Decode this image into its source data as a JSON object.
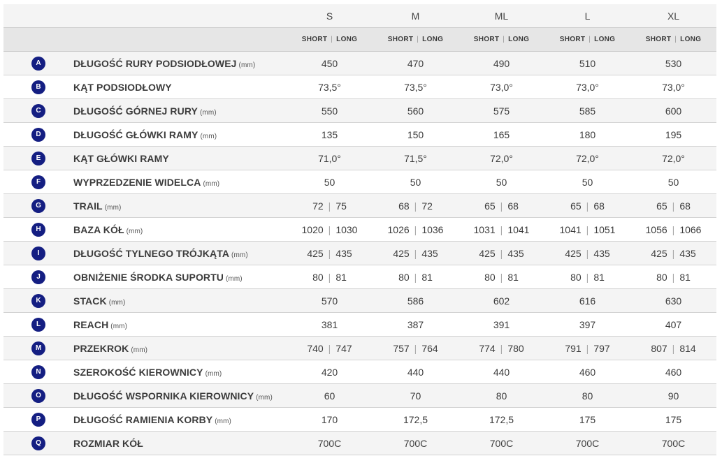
{
  "sizes": [
    "S",
    "M",
    "ML",
    "L",
    "XL"
  ],
  "variants": {
    "short": "SHORT",
    "long": "LONG",
    "separator": "|"
  },
  "rows": [
    {
      "letter": "A",
      "name": "DŁUGOŚĆ RURY PODSIODŁOWEJ",
      "unit": "(mm)",
      "values": [
        [
          "450"
        ],
        [
          "470"
        ],
        [
          "490"
        ],
        [
          "510"
        ],
        [
          "530"
        ]
      ]
    },
    {
      "letter": "B",
      "name": "KĄT PODSIODŁOWY",
      "unit": "",
      "values": [
        [
          "73,5°"
        ],
        [
          "73,5°"
        ],
        [
          "73,0°"
        ],
        [
          "73,0°"
        ],
        [
          "73,0°"
        ]
      ]
    },
    {
      "letter": "C",
      "name": "DŁUGOŚĆ GÓRNEJ RURY",
      "unit": "(mm)",
      "values": [
        [
          "550"
        ],
        [
          "560"
        ],
        [
          "575"
        ],
        [
          "585"
        ],
        [
          "600"
        ]
      ]
    },
    {
      "letter": "D",
      "name": "DŁUGOŚĆ GŁÓWKI RAMY",
      "unit": "(mm)",
      "values": [
        [
          "135"
        ],
        [
          "150"
        ],
        [
          "165"
        ],
        [
          "180"
        ],
        [
          "195"
        ]
      ]
    },
    {
      "letter": "E",
      "name": "KĄT GŁÓWKI RAMY",
      "unit": "",
      "values": [
        [
          "71,0°"
        ],
        [
          "71,5°"
        ],
        [
          "72,0°"
        ],
        [
          "72,0°"
        ],
        [
          "72,0°"
        ]
      ]
    },
    {
      "letter": "F",
      "name": "WYPRZEDZENIE WIDELCA",
      "unit": "(mm)",
      "values": [
        [
          "50"
        ],
        [
          "50"
        ],
        [
          "50"
        ],
        [
          "50"
        ],
        [
          "50"
        ]
      ]
    },
    {
      "letter": "G",
      "name": "TRAIL",
      "unit": "(mm)",
      "values": [
        [
          "72",
          "75"
        ],
        [
          "68",
          "72"
        ],
        [
          "65",
          "68"
        ],
        [
          "65",
          "68"
        ],
        [
          "65",
          "68"
        ]
      ]
    },
    {
      "letter": "H",
      "name": "BAZA KÓŁ",
      "unit": "(mm)",
      "values": [
        [
          "1020",
          "1030"
        ],
        [
          "1026",
          "1036"
        ],
        [
          "1031",
          "1041"
        ],
        [
          "1041",
          "1051"
        ],
        [
          "1056",
          "1066"
        ]
      ]
    },
    {
      "letter": "I",
      "name": "DŁUGOŚĆ TYLNEGO TRÓJKĄTA",
      "unit": "(mm)",
      "values": [
        [
          "425",
          "435"
        ],
        [
          "425",
          "435"
        ],
        [
          "425",
          "435"
        ],
        [
          "425",
          "435"
        ],
        [
          "425",
          "435"
        ]
      ]
    },
    {
      "letter": "J",
      "name": "OBNIŻENIE ŚRODKA SUPORTU",
      "unit": "(mm)",
      "values": [
        [
          "80",
          "81"
        ],
        [
          "80",
          "81"
        ],
        [
          "80",
          "81"
        ],
        [
          "80",
          "81"
        ],
        [
          "80",
          "81"
        ]
      ]
    },
    {
      "letter": "K",
      "name": "STACK",
      "unit": "(mm)",
      "values": [
        [
          "570"
        ],
        [
          "586"
        ],
        [
          "602"
        ],
        [
          "616"
        ],
        [
          "630"
        ]
      ]
    },
    {
      "letter": "L",
      "name": "REACH",
      "unit": "(mm)",
      "values": [
        [
          "381"
        ],
        [
          "387"
        ],
        [
          "391"
        ],
        [
          "397"
        ],
        [
          "407"
        ]
      ]
    },
    {
      "letter": "M",
      "name": "PRZEKROK",
      "unit": "(mm)",
      "values": [
        [
          "740",
          "747"
        ],
        [
          "757",
          "764"
        ],
        [
          "774",
          "780"
        ],
        [
          "791",
          "797"
        ],
        [
          "807",
          "814"
        ]
      ]
    },
    {
      "letter": "N",
      "name": "SZEROKOŚĆ KIEROWNICY",
      "unit": "(mm)",
      "values": [
        [
          "420"
        ],
        [
          "440"
        ],
        [
          "440"
        ],
        [
          "460"
        ],
        [
          "460"
        ]
      ]
    },
    {
      "letter": "O",
      "name": "DŁUGOŚĆ WSPORNIKA KIEROWNICY",
      "unit": "(mm)",
      "values": [
        [
          "60"
        ],
        [
          "70"
        ],
        [
          "80"
        ],
        [
          "80"
        ],
        [
          "90"
        ]
      ]
    },
    {
      "letter": "P",
      "name": "DŁUGOŚĆ RAMIENIA KORBY",
      "unit": "(mm)",
      "values": [
        [
          "170"
        ],
        [
          "172,5"
        ],
        [
          "172,5"
        ],
        [
          "175"
        ],
        [
          "175"
        ]
      ]
    },
    {
      "letter": "Q",
      "name": "ROZMIAR KÓŁ",
      "unit": "",
      "values": [
        [
          "700C"
        ],
        [
          "700C"
        ],
        [
          "700C"
        ],
        [
          "700C"
        ],
        [
          "700C"
        ]
      ]
    }
  ],
  "colors": {
    "badge": "#141e82",
    "header_bg": "#f4f4f4",
    "subheader_bg": "#e6e6e6"
  }
}
